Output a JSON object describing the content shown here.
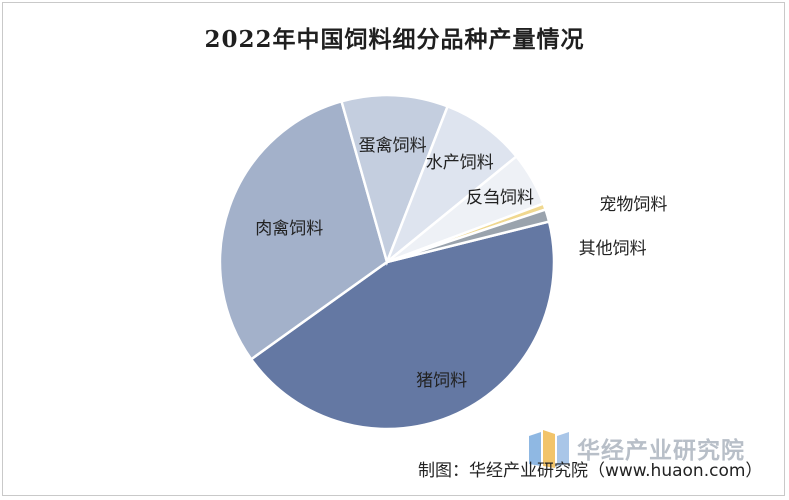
{
  "chart_data": {
    "type": "pie",
    "title": "2022年中国饲料细分品种产量情况",
    "categories": [
      "猪饲料",
      "肉禽饲料",
      "蛋禽饲料",
      "水产饲料",
      "反刍饲料",
      "宠物饲料",
      "其他饲料"
    ],
    "values": [
      44.0,
      30.5,
      10.3,
      8.2,
      5.2,
      0.6,
      1.2
    ],
    "unit": "%",
    "legend": "none",
    "colors": [
      "#6478a3",
      "#a3b1ca",
      "#c4cedf",
      "#dee4ef",
      "#eef1f6",
      "#f0d890",
      "#9aa3ad"
    ]
  },
  "source_label": "制图：华经产业研究院（www.huaon.com）",
  "watermark_text": "华经产业研究院"
}
